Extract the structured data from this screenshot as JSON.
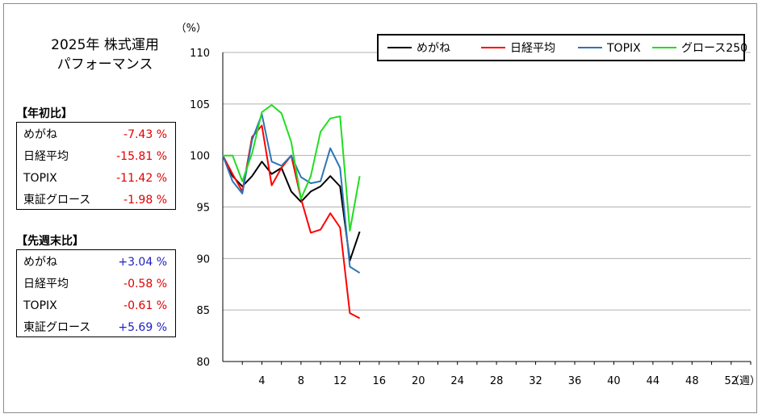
{
  "title_lines": [
    "2025年 株式運用",
    "パフォーマンス"
  ],
  "ytd": {
    "heading": "【年初比】",
    "rows": [
      {
        "label": "めがね",
        "value": "-7.43 %",
        "sign": "neg"
      },
      {
        "label": "日経平均",
        "value": "-15.81 %",
        "sign": "neg"
      },
      {
        "label": "TOPIX",
        "value": "-11.42 %",
        "sign": "neg"
      },
      {
        "label": "東証グロース",
        "value": "-1.98 %",
        "sign": "neg"
      }
    ]
  },
  "wow": {
    "heading": "【先週末比】",
    "rows": [
      {
        "label": "めがね",
        "value": "+3.04 %",
        "sign": "pos"
      },
      {
        "label": "日経平均",
        "value": "-0.58 %",
        "sign": "neg"
      },
      {
        "label": "TOPIX",
        "value": "-0.61 %",
        "sign": "neg"
      },
      {
        "label": "東証グロース",
        "value": "+5.69 %",
        "sign": "pos"
      }
    ]
  },
  "chart_data": {
    "type": "line",
    "ylabel": "（%）",
    "xlabel": "（週）",
    "ylim": [
      80,
      110
    ],
    "xlim": [
      0,
      54
    ],
    "yticks": [
      80,
      85,
      90,
      95,
      100,
      105,
      110
    ],
    "xticks": [
      4,
      8,
      12,
      16,
      20,
      24,
      28,
      32,
      36,
      40,
      44,
      48,
      52
    ],
    "grid": "horizontal",
    "legend_position": "top-right",
    "x": [
      0,
      1,
      2,
      3,
      4,
      5,
      6,
      7,
      8,
      9,
      10,
      11,
      12,
      13,
      14
    ],
    "series": [
      {
        "name": "めがね",
        "color": "#000000",
        "values": [
          100.0,
          98.0,
          97.0,
          98.0,
          99.4,
          98.2,
          98.8,
          96.5,
          95.5,
          96.5,
          97.0,
          98.0,
          97.0,
          89.8,
          92.6
        ]
      },
      {
        "name": "日経平均",
        "color": "#ff0000",
        "values": [
          100.0,
          98.2,
          96.5,
          101.8,
          102.9,
          97.1,
          98.8,
          100.0,
          95.8,
          92.5,
          92.8,
          94.4,
          93.0,
          84.7,
          84.2
        ]
      },
      {
        "name": "TOPIX",
        "color": "#2e75b6",
        "values": [
          100.0,
          97.5,
          96.3,
          101.5,
          104.0,
          99.4,
          99.0,
          100.0,
          97.9,
          97.3,
          97.5,
          100.7,
          98.8,
          89.2,
          88.6
        ]
      },
      {
        "name": "グロース250",
        "color": "#22dd22",
        "values": [
          100.0,
          100.0,
          97.5,
          100.2,
          104.2,
          104.9,
          104.1,
          101.3,
          95.8,
          98.0,
          102.3,
          103.6,
          103.8,
          92.7,
          98.0
        ]
      }
    ]
  }
}
